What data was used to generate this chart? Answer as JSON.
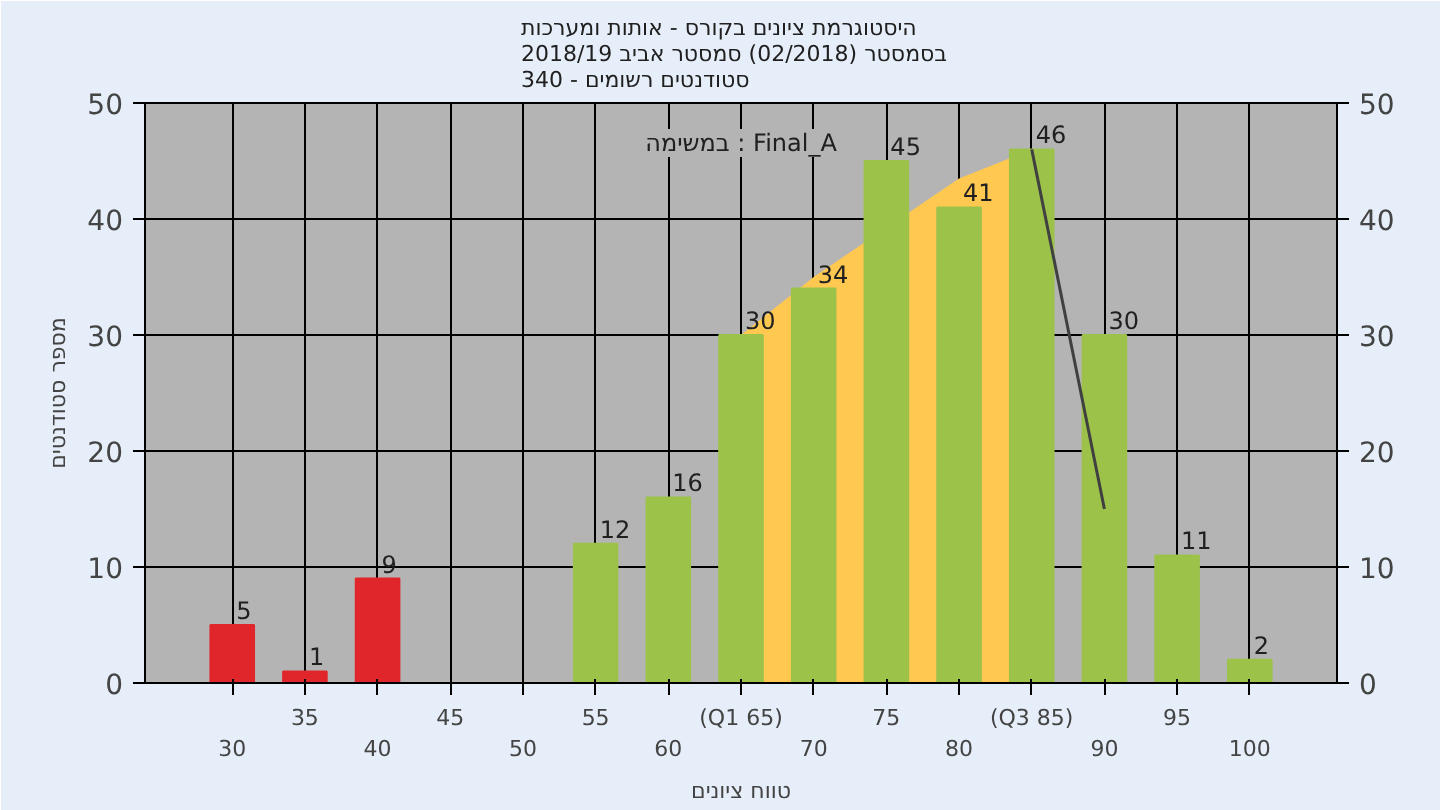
{
  "chart_data": {
    "type": "bar",
    "title": "היסטוגרמת ציונים בקורס - אותות ומערכות\nבסמסטר  (02/2018)  סמסטר אביב 2018/19\nסטודנטים רשומים - 340",
    "xlabel": "טווח ציונים",
    "ylabel": "מספר סטודנטים",
    "categories": [
      "30",
      "35",
      "40",
      "45",
      "50",
      "55",
      "60",
      "(Q1 65)",
      "70",
      "75",
      "80",
      "(Q3 85)",
      "90",
      "95",
      "100"
    ],
    "series": [
      {
        "type": "area",
        "color": "#ffc850",
        "values": [
          null,
          null,
          null,
          null,
          null,
          null,
          null,
          30,
          35,
          null,
          43.5,
          46,
          null,
          null,
          null
        ]
      },
      {
        "colors": [
          "#e0262b",
          "#e0262b",
          "#e0262b",
          "#9cc24a",
          "#9cc24a",
          "#9cc24a",
          "#9cc24a",
          "#9cc24a",
          "#9cc24a",
          "#9cc24a",
          "#9cc24a",
          "#9cc24a",
          "#9cc24a",
          "#9cc24a",
          "#9cc24a"
        ],
        "values": [
          5,
          1,
          9,
          0,
          0,
          12,
          16,
          30,
          34,
          45,
          41,
          46,
          30,
          11,
          2
        ],
        "value_labels": [
          "5",
          "1",
          "9",
          null,
          null,
          "12",
          "16",
          "30",
          "34",
          "45",
          "41",
          "46",
          "30",
          "11",
          "2"
        ]
      },
      {
        "type": "line",
        "color": "#404040",
        "values": [
          null,
          null,
          null,
          null,
          null,
          null,
          null,
          null,
          null,
          null,
          null,
          46,
          15,
          null,
          null
        ]
      }
    ],
    "ylim": [
      0,
      50
    ],
    "yticks": [
      0,
      10,
      20,
      30,
      40,
      50
    ],
    "y2lim": [
      0,
      50
    ],
    "y2ticks": [
      0,
      10,
      20,
      30,
      40,
      50
    ],
    "grid": true,
    "annotations": [
      "במשימה : Final_A"
    ]
  }
}
